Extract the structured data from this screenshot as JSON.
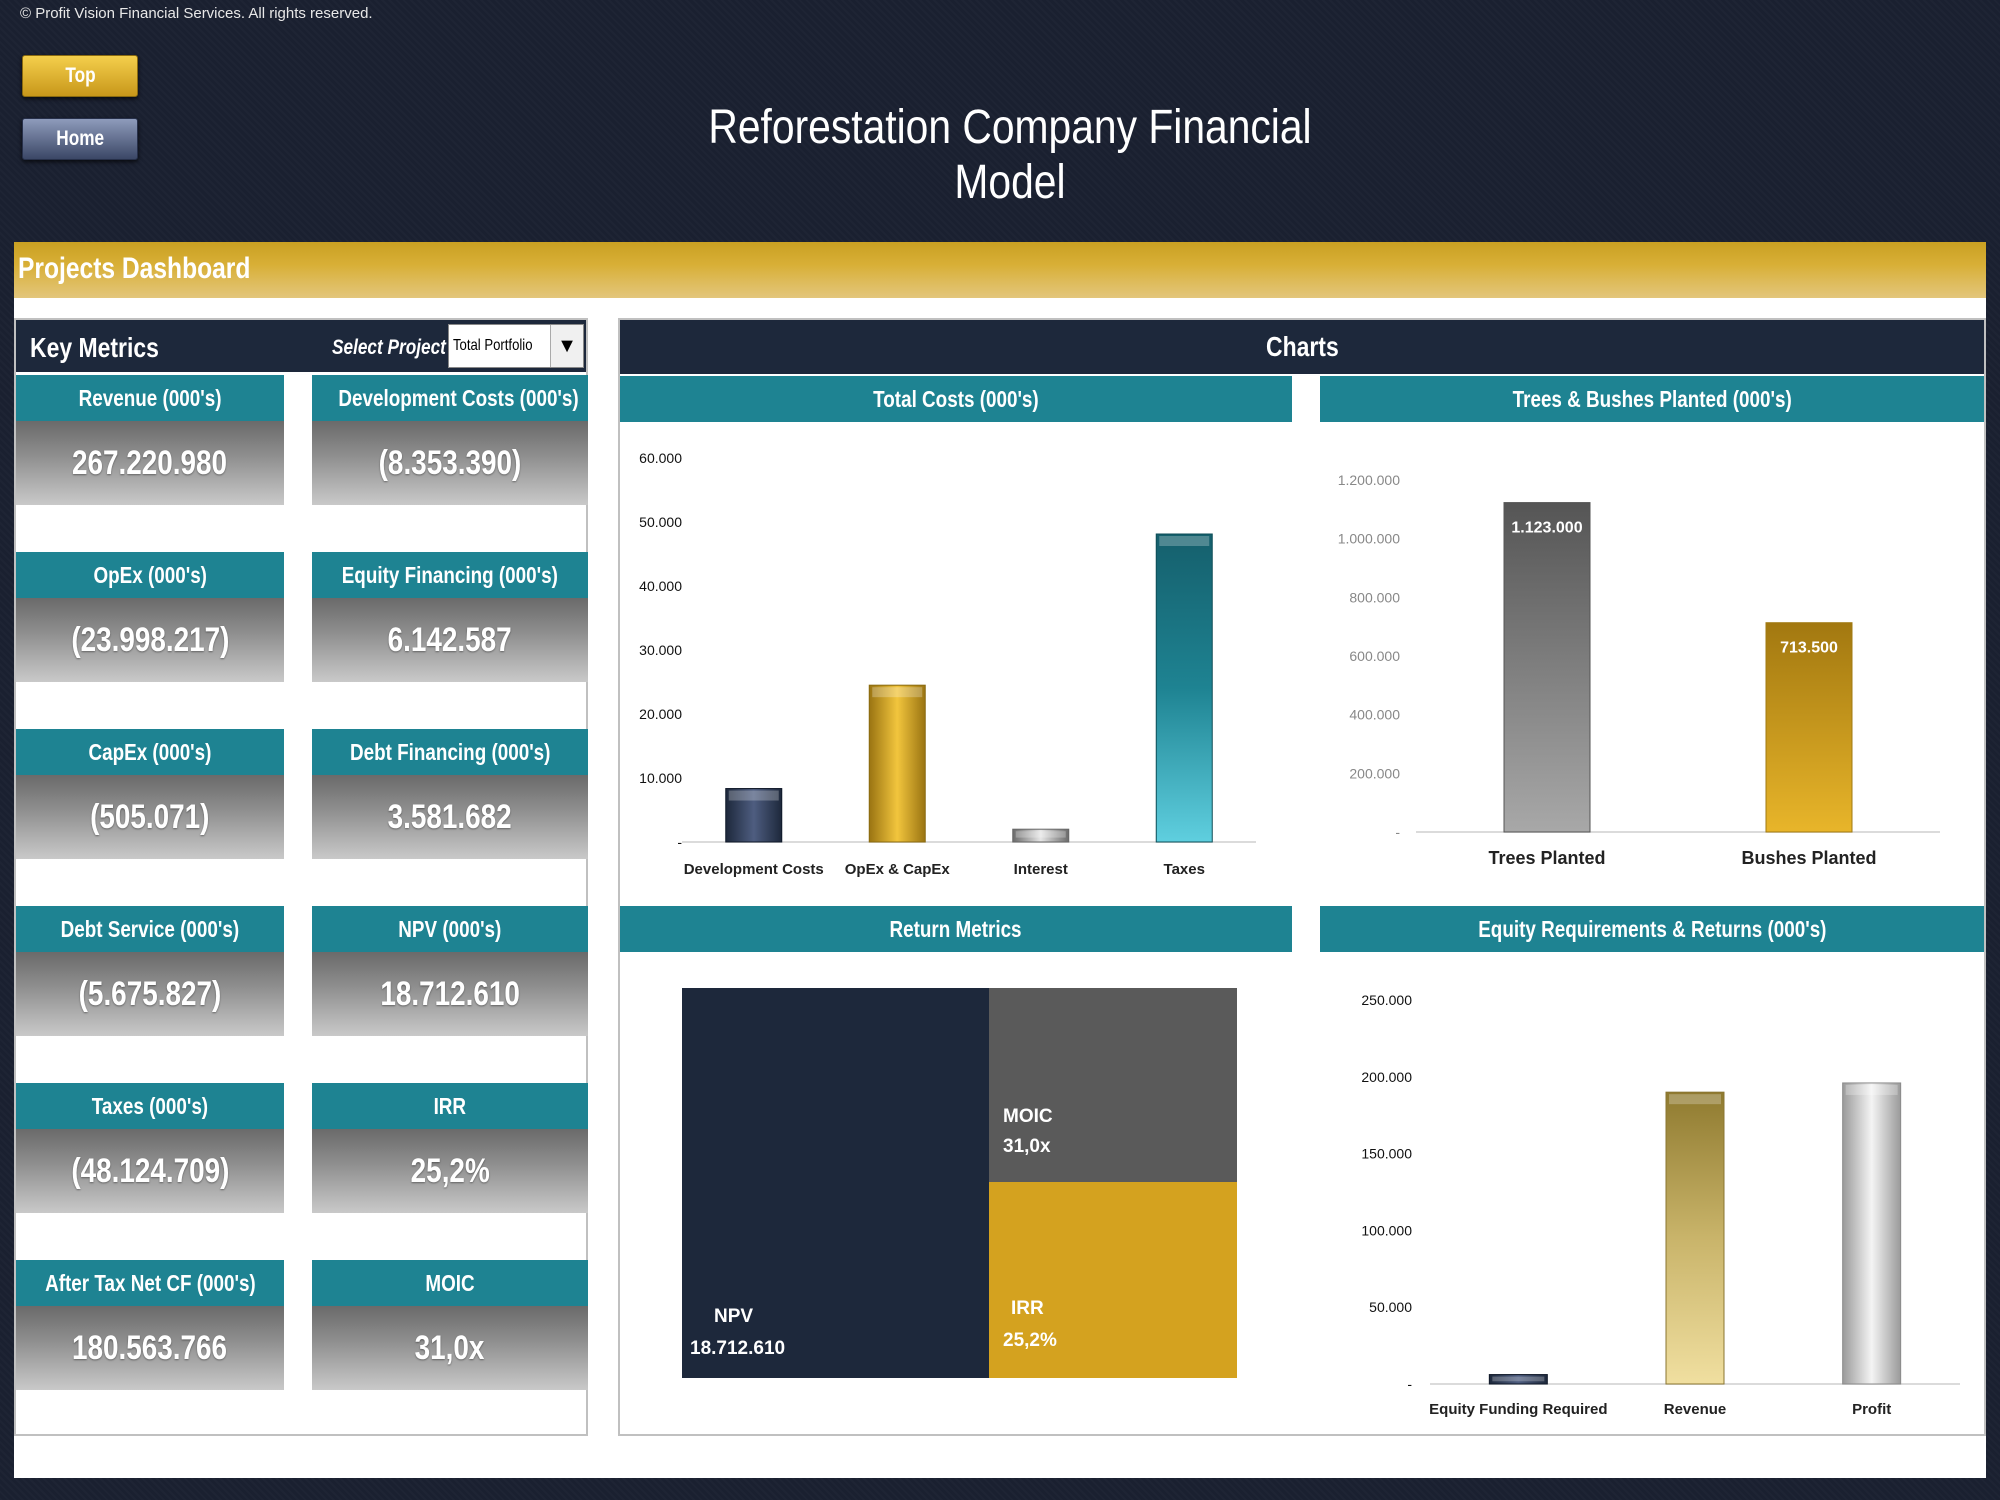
{
  "copyright": "© Profit Vision Financial Services. All rights reserved.",
  "nav": {
    "top_label": "Top",
    "home_label": "Home"
  },
  "title": "Reforestation Company Financial Model",
  "section_title": "Projects Dashboard",
  "key_metrics": {
    "title": "Key Metrics",
    "select_label": "Select Project",
    "select_value": "Total Portfolio",
    "items": [
      {
        "label": "Revenue (000's)",
        "value": "267.220.980"
      },
      {
        "label": "Development Costs (000's)",
        "value": "(8.353.390)"
      },
      {
        "label": "OpEx (000's)",
        "value": "(23.998.217)"
      },
      {
        "label": "Equity Financing (000's)",
        "value": "6.142.587"
      },
      {
        "label": "CapEx (000's)",
        "value": "(505.071)"
      },
      {
        "label": "Debt Financing (000's)",
        "value": "3.581.682"
      },
      {
        "label": "Debt Service (000's)",
        "value": "(5.675.827)"
      },
      {
        "label": "NPV (000's)",
        "value": "18.712.610"
      },
      {
        "label": "Taxes (000's)",
        "value": "(48.124.709)"
      },
      {
        "label": "IRR",
        "value": "25,2%"
      },
      {
        "label": "After Tax Net CF (000's)",
        "value": "180.563.766"
      },
      {
        "label": "MOIC",
        "value": "31,0x"
      }
    ]
  },
  "charts_title": "Charts",
  "colors": {
    "navy": "#1d283b",
    "teal": "#1e8392",
    "gold": "#d4a21f",
    "gray": "#5a5a5a"
  },
  "chart_data": [
    {
      "type": "bar",
      "title": "Total Costs (000's)",
      "categories": [
        "Development Costs",
        "OpEx & CapEx",
        "Interest",
        "Taxes"
      ],
      "values": [
        8353,
        24503,
        2000,
        48125
      ],
      "ylim": [
        0,
        60000
      ],
      "yticks": [
        0,
        10000,
        20000,
        30000,
        40000,
        50000,
        60000
      ],
      "ytick_labels": [
        "-",
        "10.000",
        "20.000",
        "30.000",
        "40.000",
        "50.000",
        "60.000"
      ],
      "grid": false
    },
    {
      "type": "bar",
      "title": "Trees & Bushes Planted (000's)",
      "categories": [
        "Trees Planted",
        "Bushes Planted"
      ],
      "values": [
        1123000,
        713500
      ],
      "data_labels": [
        "1.123.000",
        "713.500"
      ],
      "ylim": [
        0,
        1200000
      ],
      "yticks": [
        0,
        200000,
        400000,
        600000,
        800000,
        1000000,
        1200000
      ],
      "ytick_labels": [
        "-",
        "200.000",
        "400.000",
        "600.000",
        "800.000",
        "1.000.000",
        "1.200.000"
      ],
      "grid": false
    },
    {
      "type": "treemap",
      "title": "Return Metrics",
      "items": [
        {
          "name": "NPV",
          "value_label": "18.712.610"
        },
        {
          "name": "MOIC",
          "value_label": "31,0x"
        },
        {
          "name": "IRR",
          "value_label": "25,2%"
        }
      ]
    },
    {
      "type": "bar",
      "title": "Equity Requirements & Returns (000's)",
      "categories": [
        "Equity Funding Required",
        "Revenue",
        "Profit"
      ],
      "values": [
        6143,
        190000,
        196000
      ],
      "ylim": [
        0,
        250000
      ],
      "yticks": [
        0,
        50000,
        100000,
        150000,
        200000,
        250000
      ],
      "ytick_labels": [
        "-",
        "50.000",
        "100.000",
        "150.000",
        "200.000",
        "250.000"
      ],
      "grid": false
    }
  ]
}
